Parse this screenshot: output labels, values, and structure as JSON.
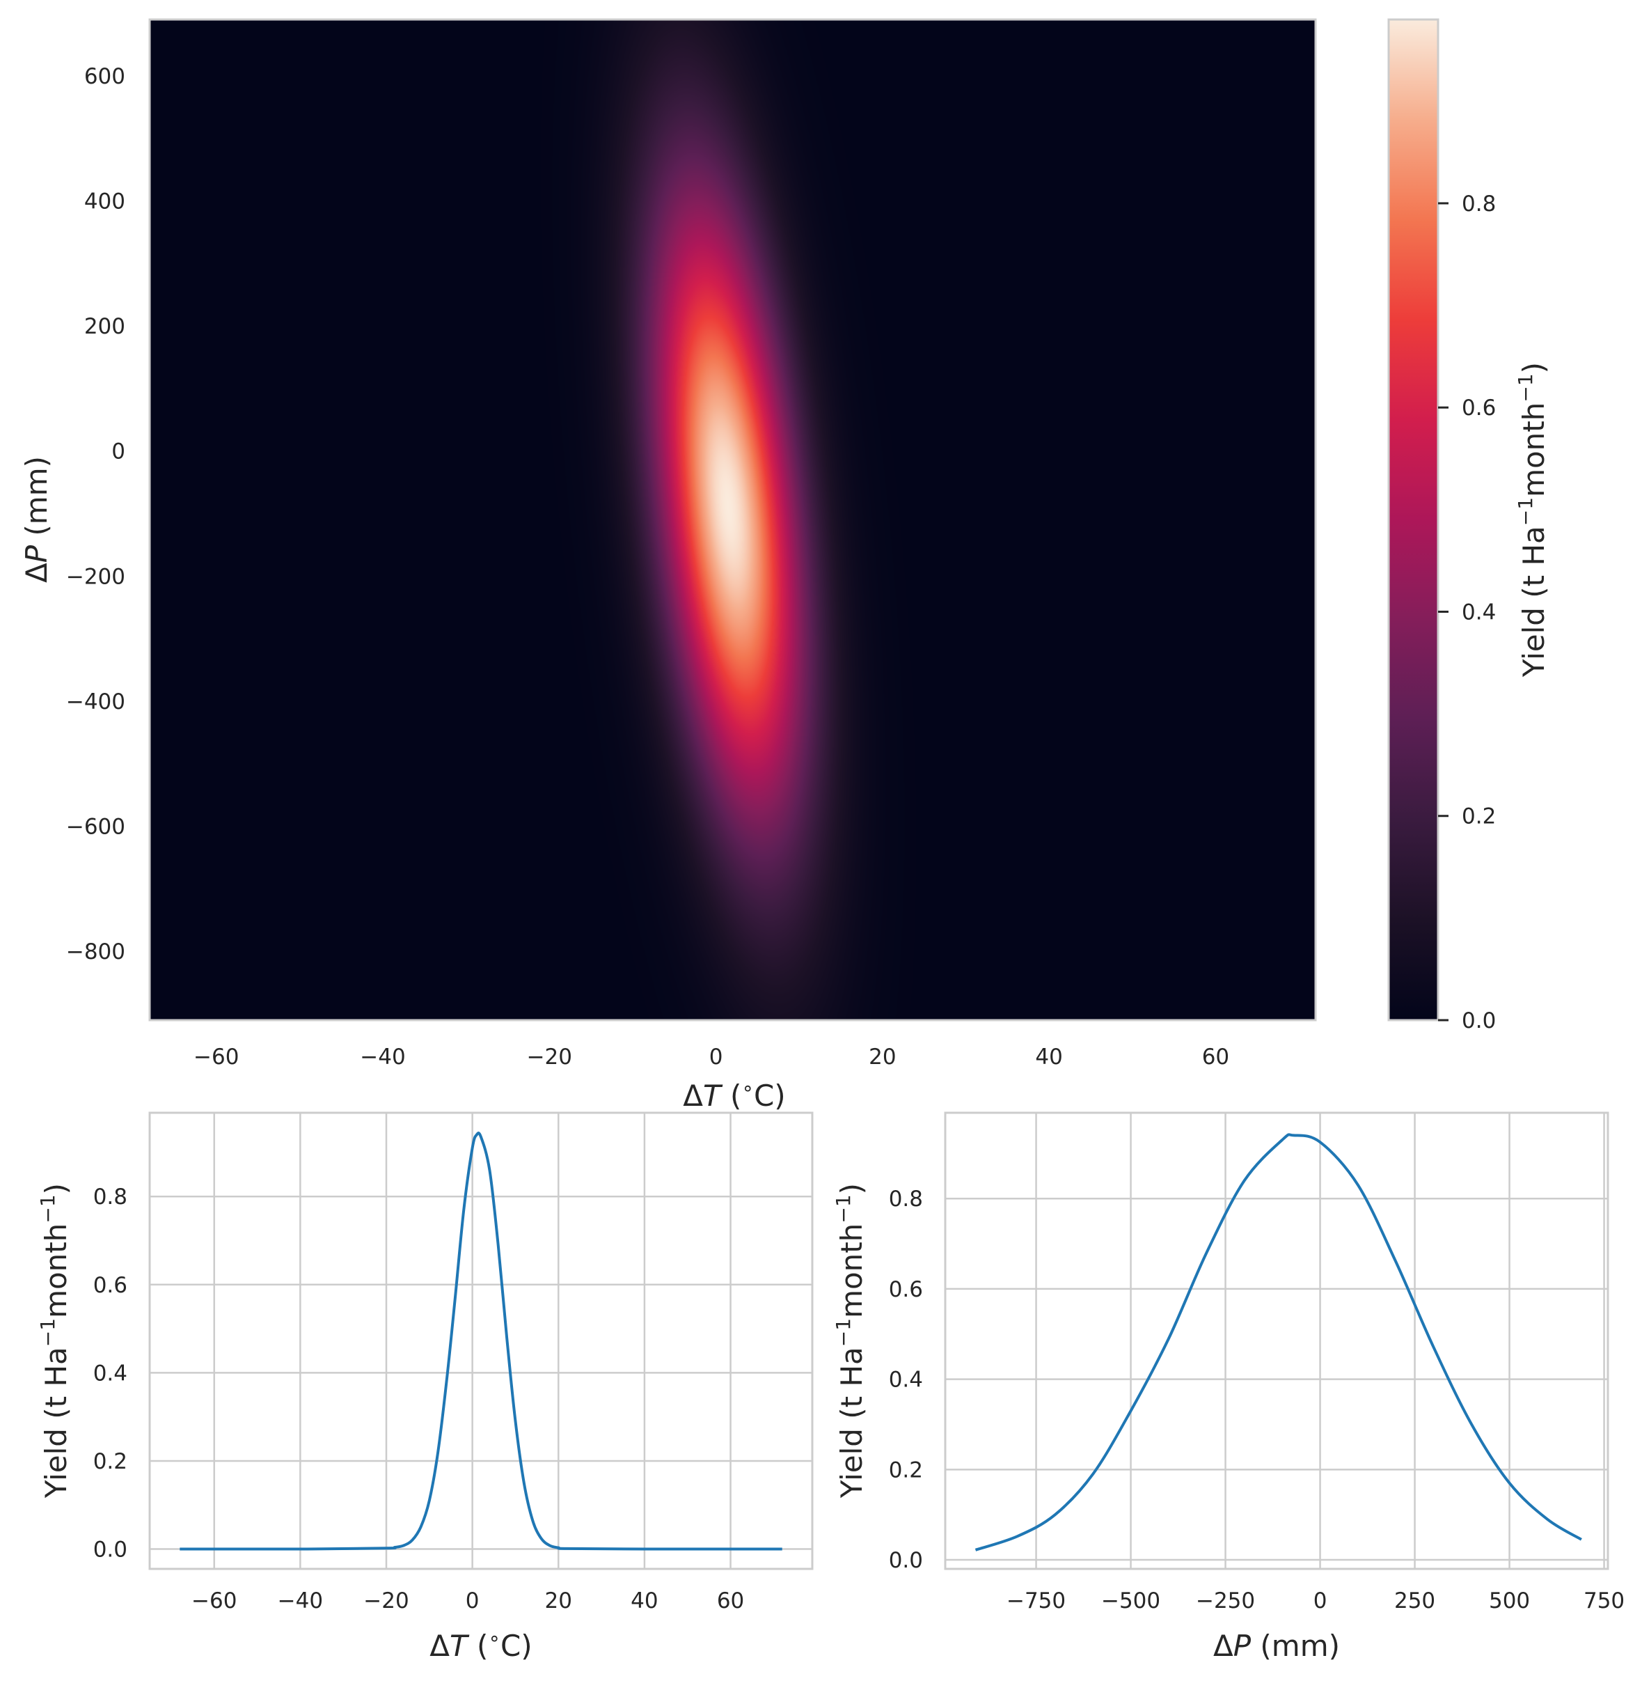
{
  "chart_data": [
    {
      "type": "heatmap",
      "xlabel_parts": [
        "Δ",
        "T",
        " (",
        "∘",
        "C)"
      ],
      "ylabel_parts": [
        "Δ",
        "P",
        " (mm)"
      ],
      "xlim": [
        -68,
        72
      ],
      "ylim": [
        -910,
        690
      ],
      "xticks": [
        -60,
        -40,
        -20,
        0,
        20,
        40,
        60
      ],
      "xtick_labels": [
        "−60",
        "−40",
        "−20",
        "0",
        "20",
        "40",
        "60"
      ],
      "yticks": [
        600,
        400,
        200,
        0,
        -200,
        -400,
        -600,
        -800
      ],
      "ytick_labels": [
        "600",
        "400",
        "200",
        "0",
        "−200",
        "−400",
        "−600",
        "−800"
      ],
      "peak": {
        "dT": 1.5,
        "dP": -90,
        "value": 0.98
      },
      "spread": {
        "sigma_T": 5.8,
        "sigma_P": 360,
        "tilt_T_per_P": -0.0075
      },
      "colorscale": "rocket",
      "grid": false,
      "colorbar": {
        "label_parts": [
          "Yield (t Ha",
          "−1",
          "month",
          "−1",
          ")"
        ],
        "range": [
          0,
          0.98
        ],
        "ticks": [
          0.0,
          0.2,
          0.4,
          0.6,
          0.8
        ],
        "tick_labels": [
          "0.0",
          "0.2",
          "0.4",
          "0.6",
          "0.8"
        ]
      }
    },
    {
      "type": "line",
      "xlabel_parts": [
        "Δ",
        "T",
        " (",
        "∘",
        "C)"
      ],
      "ylabel_parts": [
        "Yield (t Ha",
        "−1",
        "month",
        "−1",
        ")"
      ],
      "xlim": [
        -75,
        79
      ],
      "ylim": [
        -0.045,
        0.99
      ],
      "xticks": [
        -60,
        -40,
        -20,
        0,
        20,
        40,
        60
      ],
      "xtick_labels": [
        "−60",
        "−40",
        "−20",
        "0",
        "20",
        "40",
        "60"
      ],
      "yticks": [
        0.0,
        0.2,
        0.4,
        0.6,
        0.8
      ],
      "ytick_labels": [
        "0.0",
        "0.2",
        "0.4",
        "0.6",
        "0.8"
      ],
      "grid": true,
      "series": [
        {
          "color": "#1f77b4",
          "x": [
            -68,
            -40,
            -20,
            -18,
            -16,
            -14,
            -12,
            -10,
            -8,
            -6,
            -4,
            -2,
            0,
            1,
            2,
            4,
            6,
            8,
            10,
            12,
            14,
            16,
            18,
            20,
            22,
            40,
            72
          ],
          "y": [
            0,
            0,
            0.002,
            0.004,
            0.008,
            0.02,
            0.05,
            0.11,
            0.22,
            0.38,
            0.57,
            0.77,
            0.91,
            0.94,
            0.935,
            0.86,
            0.69,
            0.48,
            0.29,
            0.15,
            0.065,
            0.024,
            0.008,
            0.003,
            0.001,
            0,
            0
          ]
        }
      ]
    },
    {
      "type": "line",
      "xlabel_parts": [
        "Δ",
        "P",
        " (mm)"
      ],
      "ylabel_parts": [
        "Yield (t Ha",
        "−1",
        "month",
        "−1",
        ")"
      ],
      "xlim": [
        -990,
        760
      ],
      "ylim": [
        -0.02,
        0.99
      ],
      "xticks": [
        -750,
        -500,
        -250,
        0,
        250,
        500,
        750
      ],
      "xtick_labels": [
        "−750",
        "−500",
        "−250",
        "0",
        "250",
        "500",
        "750"
      ],
      "yticks": [
        0.0,
        0.2,
        0.4,
        0.6,
        0.8
      ],
      "ytick_labels": [
        "0.0",
        "0.2",
        "0.4",
        "0.6",
        "0.8"
      ],
      "grid": true,
      "series": [
        {
          "color": "#1f77b4",
          "x": [
            -910,
            -800,
            -700,
            -600,
            -500,
            -400,
            -300,
            -200,
            -100,
            -70,
            0,
            100,
            200,
            300,
            400,
            500,
            600,
            690
          ],
          "y": [
            0.022,
            0.052,
            0.1,
            0.19,
            0.33,
            0.49,
            0.68,
            0.84,
            0.93,
            0.94,
            0.925,
            0.83,
            0.66,
            0.47,
            0.3,
            0.17,
            0.09,
            0.045
          ]
        }
      ]
    }
  ]
}
